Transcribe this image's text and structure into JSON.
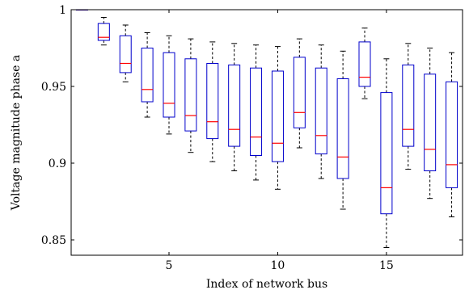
{
  "chart_data": {
    "type": "boxplot",
    "title": "",
    "xlabel": "Index of network bus",
    "ylabel": "Voltage magnitude phase a",
    "xlim": [
      0.5,
      18.5
    ],
    "ylim": [
      0.84,
      1.0
    ],
    "xticks": [
      5,
      10,
      15
    ],
    "xtick_labels": [
      "5",
      "10",
      "15"
    ],
    "yticks": [
      0.85,
      0.9,
      0.95,
      1.0
    ],
    "ytick_labels": [
      "0.85",
      "0.9",
      "0.95",
      "1"
    ],
    "grid": false,
    "colors": {
      "box": "#0000cc",
      "median": "#ff0000",
      "whisker": "#000000"
    },
    "boxes": [
      {
        "bus": 1,
        "whisker_low": 1.0,
        "q1": 1.0,
        "median": 1.0,
        "q3": 1.0,
        "whisker_high": 1.0
      },
      {
        "bus": 2,
        "whisker_low": 0.977,
        "q1": 0.98,
        "median": 0.982,
        "q3": 0.991,
        "whisker_high": 0.995
      },
      {
        "bus": 3,
        "whisker_low": 0.953,
        "q1": 0.959,
        "median": 0.965,
        "q3": 0.983,
        "whisker_high": 0.99
      },
      {
        "bus": 4,
        "whisker_low": 0.93,
        "q1": 0.94,
        "median": 0.948,
        "q3": 0.975,
        "whisker_high": 0.985
      },
      {
        "bus": 5,
        "whisker_low": 0.919,
        "q1": 0.93,
        "median": 0.939,
        "q3": 0.972,
        "whisker_high": 0.983
      },
      {
        "bus": 6,
        "whisker_low": 0.907,
        "q1": 0.921,
        "median": 0.931,
        "q3": 0.968,
        "whisker_high": 0.981
      },
      {
        "bus": 7,
        "whisker_low": 0.901,
        "q1": 0.916,
        "median": 0.927,
        "q3": 0.965,
        "whisker_high": 0.979
      },
      {
        "bus": 8,
        "whisker_low": 0.895,
        "q1": 0.911,
        "median": 0.922,
        "q3": 0.964,
        "whisker_high": 0.978
      },
      {
        "bus": 9,
        "whisker_low": 0.889,
        "q1": 0.905,
        "median": 0.917,
        "q3": 0.962,
        "whisker_high": 0.977
      },
      {
        "bus": 10,
        "whisker_low": 0.883,
        "q1": 0.901,
        "median": 0.913,
        "q3": 0.96,
        "whisker_high": 0.976
      },
      {
        "bus": 11,
        "whisker_low": 0.91,
        "q1": 0.923,
        "median": 0.933,
        "q3": 0.969,
        "whisker_high": 0.981
      },
      {
        "bus": 12,
        "whisker_low": 0.89,
        "q1": 0.906,
        "median": 0.918,
        "q3": 0.962,
        "whisker_high": 0.977
      },
      {
        "bus": 13,
        "whisker_low": 0.87,
        "q1": 0.89,
        "median": 0.904,
        "q3": 0.955,
        "whisker_high": 0.973
      },
      {
        "bus": 14,
        "whisker_low": 0.942,
        "q1": 0.95,
        "median": 0.956,
        "q3": 0.979,
        "whisker_high": 0.988
      },
      {
        "bus": 15,
        "whisker_low": 0.845,
        "q1": 0.867,
        "median": 0.884,
        "q3": 0.946,
        "whisker_high": 0.968
      },
      {
        "bus": 16,
        "whisker_low": 0.896,
        "q1": 0.911,
        "median": 0.922,
        "q3": 0.964,
        "whisker_high": 0.978
      },
      {
        "bus": 17,
        "whisker_low": 0.877,
        "q1": 0.895,
        "median": 0.909,
        "q3": 0.958,
        "whisker_high": 0.975
      },
      {
        "bus": 18,
        "whisker_low": 0.865,
        "q1": 0.884,
        "median": 0.899,
        "q3": 0.953,
        "whisker_high": 0.972
      }
    ]
  }
}
